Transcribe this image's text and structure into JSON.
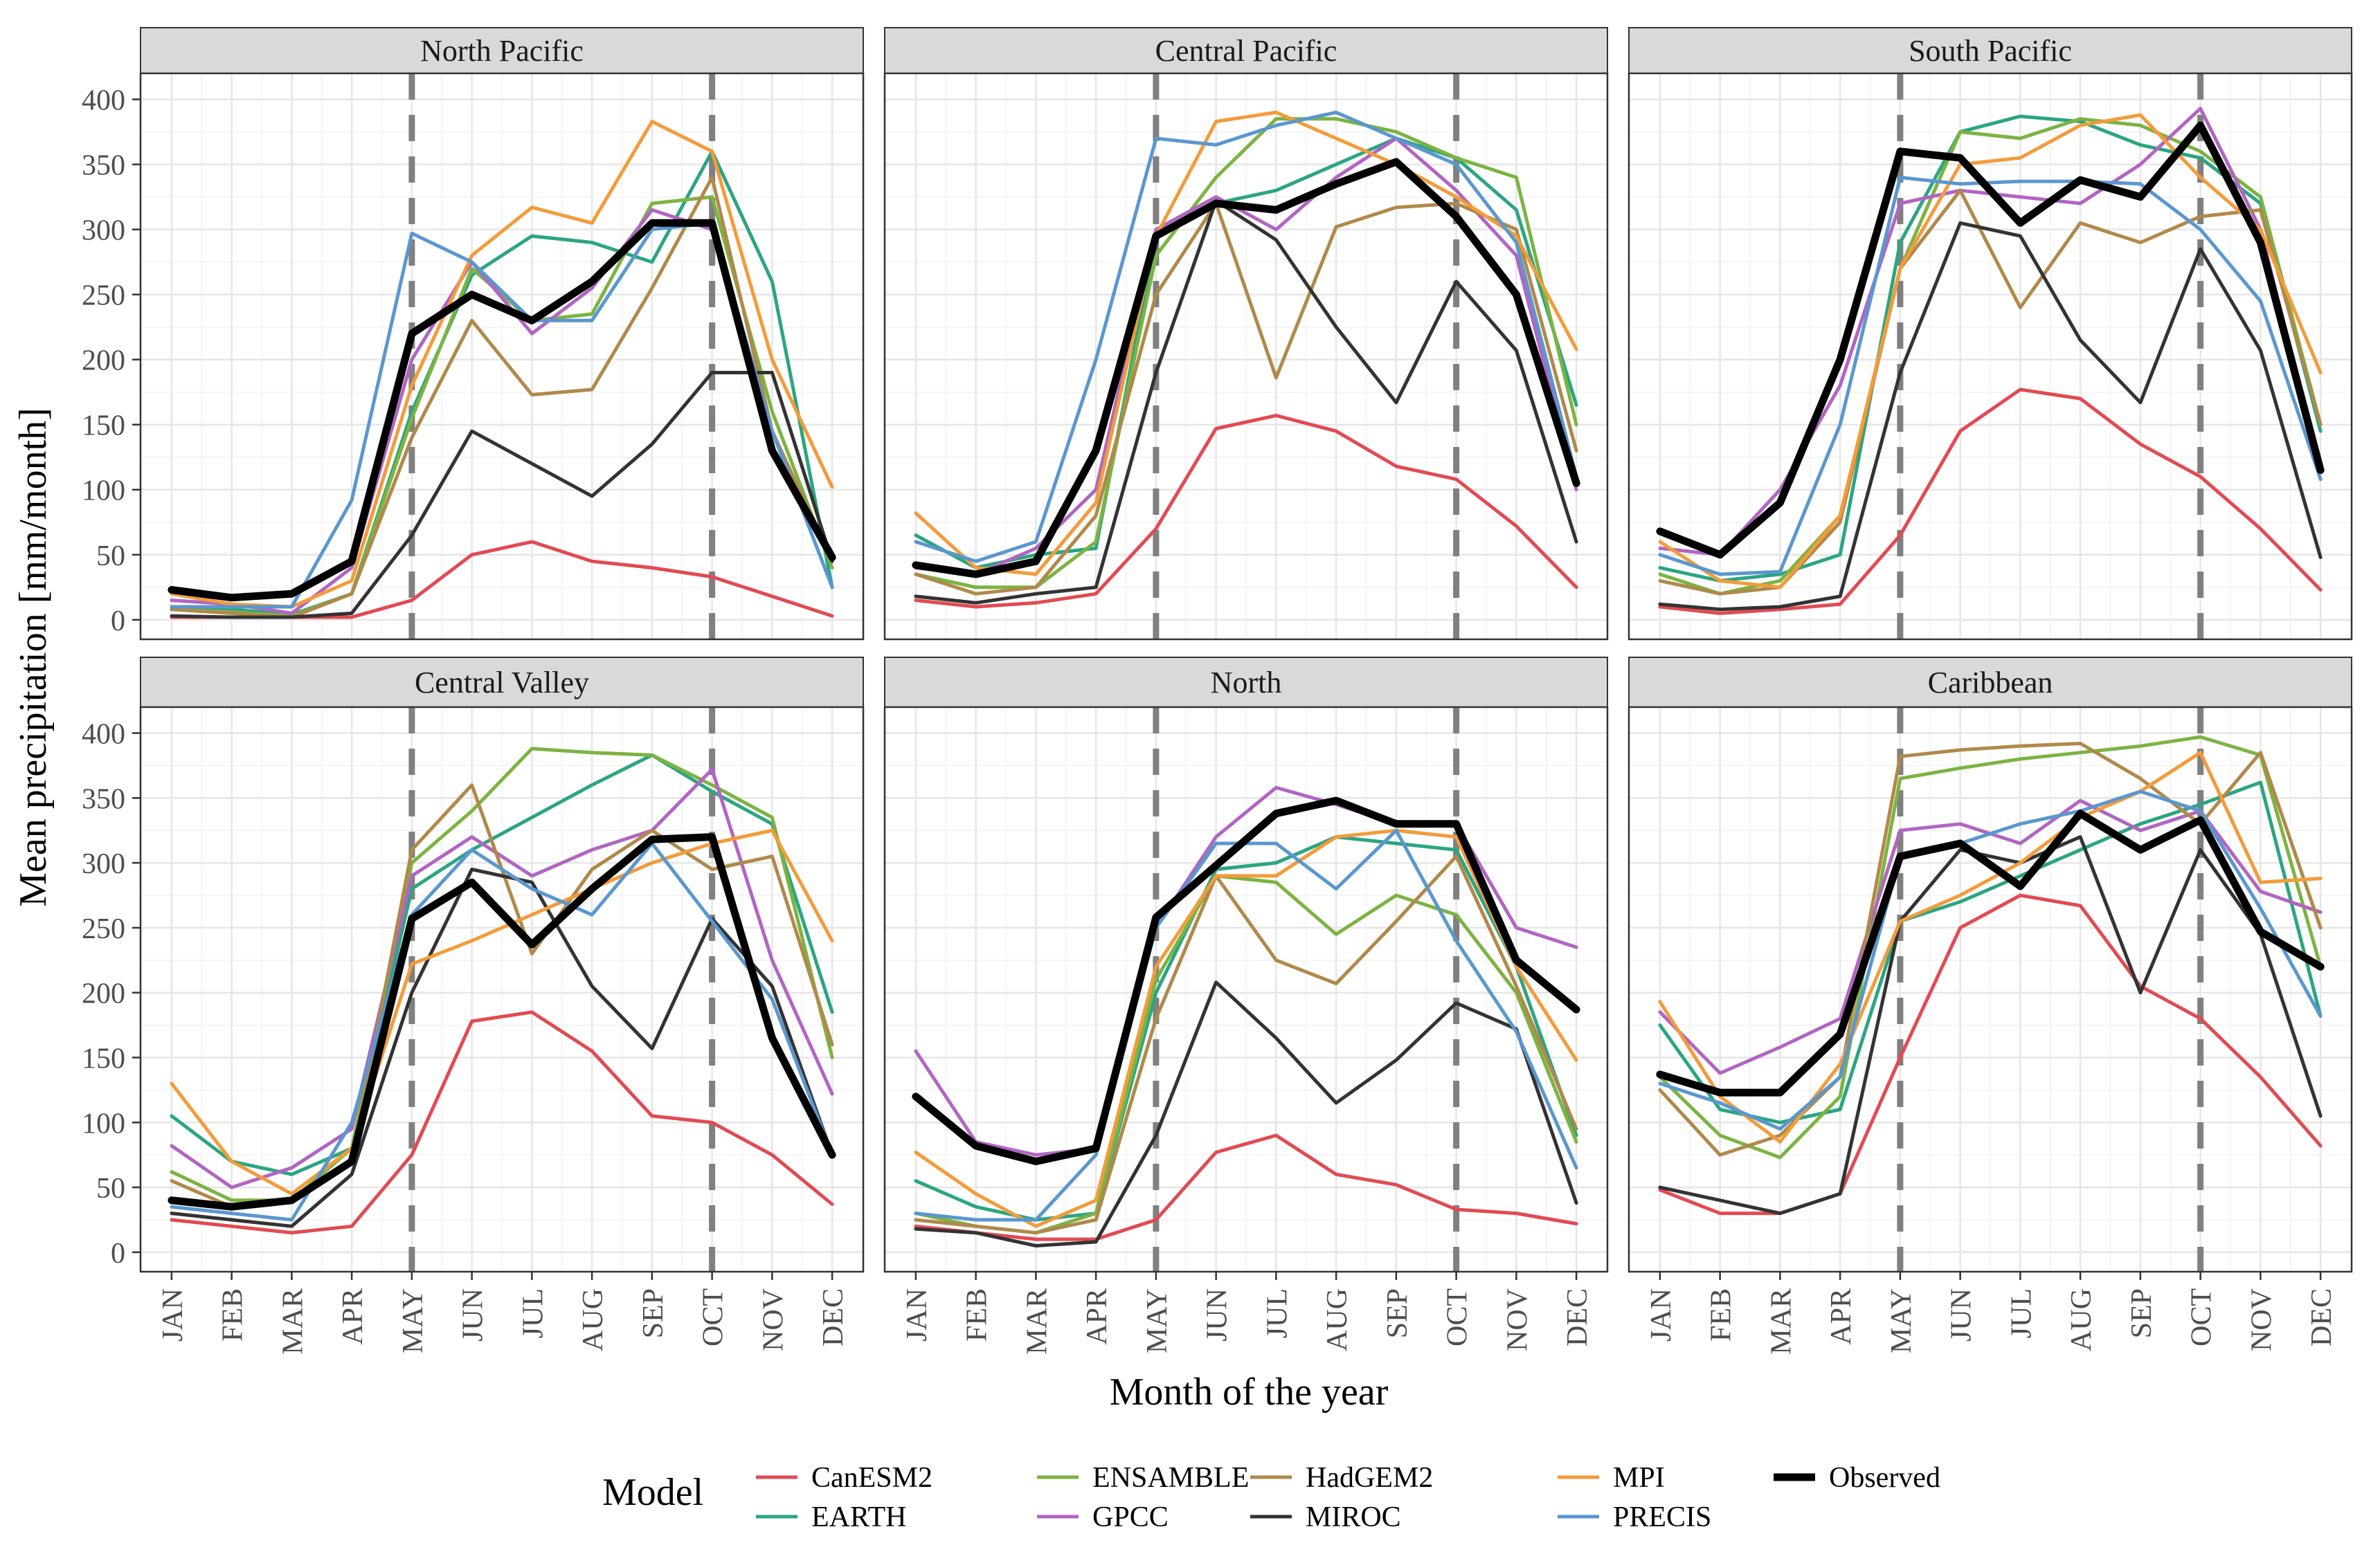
{
  "chart_data": {
    "type": "line",
    "ylabel": "Mean precipitation [mm/month]",
    "xlabel": "Month of the year",
    "ylim": [
      -15,
      420
    ],
    "yticks": [
      0,
      50,
      100,
      150,
      200,
      250,
      300,
      350,
      400
    ],
    "categories": [
      "JAN",
      "FEB",
      "MAR",
      "APR",
      "MAY",
      "JUN",
      "JUL",
      "AUG",
      "SEP",
      "OCT",
      "NOV",
      "DEC"
    ],
    "season_markers": [
      "MAY",
      "OCT"
    ],
    "legend": {
      "title": "Model",
      "position": "bottom",
      "entries": [
        {
          "name": "CanESM2",
          "color": "#e24a52"
        },
        {
          "name": "EARTH",
          "color": "#2ba582"
        },
        {
          "name": "ENSAMBLE",
          "color": "#7cb342"
        },
        {
          "name": "GPCC",
          "color": "#b165c2"
        },
        {
          "name": "HadGEM2",
          "color": "#b0894a"
        },
        {
          "name": "MIROC",
          "color": "#333333"
        },
        {
          "name": "MPI",
          "color": "#f39b3a"
        },
        {
          "name": "PRECIS",
          "color": "#5a97cf"
        },
        {
          "name": "Observed",
          "color": "#000000"
        }
      ]
    },
    "panels": [
      {
        "title": "North Pacific",
        "series": [
          {
            "name": "CanESM2",
            "values": [
              2,
              2,
              2,
              2,
              15,
              50,
              60,
              45,
              40,
              33,
              18,
              3
            ]
          },
          {
            "name": "EARTH",
            "values": [
              10,
              8,
              4,
              20,
              160,
              265,
              295,
              290,
              275,
              360,
              260,
              25
            ]
          },
          {
            "name": "ENSAMBLE",
            "values": [
              8,
              6,
              3,
              20,
              155,
              270,
              230,
              235,
              320,
              325,
              160,
              40
            ]
          },
          {
            "name": "GPCC",
            "values": [
              15,
              12,
              5,
              40,
              200,
              275,
              220,
              255,
              315,
              300,
              145,
              45
            ]
          },
          {
            "name": "HadGEM2",
            "values": [
              8,
              5,
              2,
              20,
              140,
              230,
              173,
              177,
              255,
              340,
              145,
              45
            ]
          },
          {
            "name": "MIROC",
            "values": [
              3,
              2,
              2,
              5,
              65,
              145,
              120,
              95,
              135,
              190,
              190,
              45
            ]
          },
          {
            "name": "MPI",
            "values": [
              20,
              12,
              10,
              30,
              180,
              280,
              317,
              305,
              383,
              360,
              200,
              102
            ]
          },
          {
            "name": "PRECIS",
            "values": [
              10,
              10,
              10,
              92,
              297,
              275,
              230,
              230,
              300,
              305,
              145,
              25
            ]
          },
          {
            "name": "Observed",
            "values": [
              23,
              17,
              20,
              45,
              220,
              250,
              230,
              260,
              305,
              305,
              130,
              48
            ]
          }
        ]
      },
      {
        "title": "Central Pacific",
        "series": [
          {
            "name": "CanESM2",
            "values": [
              15,
              10,
              13,
              20,
              70,
              147,
              157,
              145,
              118,
              108,
              72,
              25
            ]
          },
          {
            "name": "EARTH",
            "values": [
              65,
              40,
              50,
              55,
              295,
              320,
              330,
              350,
              370,
              355,
              315,
              165
            ]
          },
          {
            "name": "ENSAMBLE",
            "values": [
              35,
              25,
              25,
              60,
              280,
              340,
              385,
              385,
              375,
              355,
              340,
              150
            ]
          },
          {
            "name": "GPCC",
            "values": [
              40,
              35,
              55,
              100,
              300,
              325,
              300,
              340,
              370,
              330,
              280,
              100
            ]
          },
          {
            "name": "HadGEM2",
            "values": [
              35,
              20,
              25,
              80,
              250,
              320,
              186,
              302,
              317,
              320,
              300,
              130
            ]
          },
          {
            "name": "MIROC",
            "values": [
              18,
              13,
              20,
              25,
              190,
              322,
              292,
              225,
              167,
              260,
              207,
              60
            ]
          },
          {
            "name": "MPI",
            "values": [
              82,
              40,
              35,
              90,
              295,
              383,
              390,
              370,
              350,
              325,
              295,
              208
            ]
          },
          {
            "name": "PRECIS",
            "values": [
              60,
              45,
              60,
              200,
              370,
              365,
              380,
              390,
              370,
              350,
              290,
              110
            ]
          },
          {
            "name": "Observed",
            "values": [
              42,
              35,
              45,
              130,
              295,
              320,
              315,
              335,
              352,
              310,
              250,
              105
            ]
          }
        ]
      },
      {
        "title": "South Pacific",
        "series": [
          {
            "name": "CanESM2",
            "values": [
              10,
              5,
              8,
              12,
              65,
              145,
              177,
              170,
              135,
              110,
              70,
              23
            ]
          },
          {
            "name": "EARTH",
            "values": [
              40,
              30,
              35,
              50,
              290,
              375,
              387,
              383,
              365,
              355,
              320,
              145
            ]
          },
          {
            "name": "ENSAMBLE",
            "values": [
              35,
              20,
              30,
              80,
              270,
              375,
              370,
              385,
              380,
              360,
              325,
              150
            ]
          },
          {
            "name": "GPCC",
            "values": [
              55,
              50,
              100,
              180,
              320,
              330,
              325,
              320,
              350,
              393,
              300,
              115
            ]
          },
          {
            "name": "HadGEM2",
            "values": [
              30,
              20,
              25,
              75,
              270,
              330,
              240,
              305,
              290,
              310,
              315,
              150
            ]
          },
          {
            "name": "MIROC",
            "values": [
              12,
              8,
              10,
              18,
              190,
              305,
              295,
              215,
              167,
              285,
              207,
              48
            ]
          },
          {
            "name": "MPI",
            "values": [
              60,
              30,
              25,
              80,
              270,
              350,
              355,
              380,
              388,
              340,
              300,
              190
            ]
          },
          {
            "name": "PRECIS",
            "values": [
              50,
              35,
              37,
              150,
              340,
              335,
              337,
              337,
              335,
              300,
              245,
              108
            ]
          },
          {
            "name": "Observed",
            "values": [
              68,
              50,
              90,
              200,
              360,
              355,
              305,
              338,
              325,
              380,
              290,
              115
            ]
          }
        ]
      },
      {
        "title": "Central Valley",
        "series": [
          {
            "name": "CanESM2",
            "values": [
              25,
              20,
              15,
              20,
              75,
              178,
              185,
              155,
              105,
              100,
              75,
              37
            ]
          },
          {
            "name": "EARTH",
            "values": [
              105,
              70,
              60,
              80,
              280,
              310,
              335,
              360,
              383,
              355,
              330,
              185
            ]
          },
          {
            "name": "ENSAMBLE",
            "values": [
              62,
              40,
              40,
              80,
              300,
              340,
              388,
              385,
              383,
              360,
              335,
              150
            ]
          },
          {
            "name": "GPCC",
            "values": [
              82,
              50,
              65,
              95,
              290,
              320,
              290,
              310,
              325,
              372,
              225,
              122
            ]
          },
          {
            "name": "HadGEM2",
            "values": [
              55,
              35,
              40,
              70,
              310,
              360,
              230,
              295,
              325,
              295,
              305,
              160
            ]
          },
          {
            "name": "MIROC",
            "values": [
              30,
              25,
              20,
              60,
              200,
              295,
              285,
              205,
              157,
              257,
              205,
              75
            ]
          },
          {
            "name": "MPI",
            "values": [
              130,
              70,
              45,
              80,
              222,
              240,
              260,
              280,
              300,
              315,
              325,
              240
            ]
          },
          {
            "name": "PRECIS",
            "values": [
              35,
              30,
              25,
              100,
              260,
              310,
              280,
              260,
              315,
              255,
              195,
              75
            ]
          },
          {
            "name": "Observed",
            "values": [
              40,
              35,
              40,
              70,
              257,
              285,
              237,
              280,
              318,
              320,
              165,
              75
            ]
          }
        ]
      },
      {
        "title": "North",
        "series": [
          {
            "name": "CanESM2",
            "values": [
              20,
              15,
              10,
              10,
              25,
              77,
              90,
              60,
              52,
              33,
              30,
              22
            ]
          },
          {
            "name": "EARTH",
            "values": [
              55,
              35,
              25,
              30,
              200,
              295,
              300,
              320,
              315,
              310,
              220,
              90
            ]
          },
          {
            "name": "ENSAMBLE",
            "values": [
              30,
              20,
              15,
              30,
              210,
              290,
              285,
              245,
              275,
              260,
              200,
              85
            ]
          },
          {
            "name": "GPCC",
            "values": [
              155,
              85,
              75,
              80,
              250,
              320,
              358,
              345,
              330,
              330,
              250,
              235
            ]
          },
          {
            "name": "HadGEM2",
            "values": [
              25,
              20,
              15,
              25,
              180,
              290,
              225,
              207,
              255,
              305,
              205,
              95
            ]
          },
          {
            "name": "MIROC",
            "values": [
              18,
              15,
              5,
              8,
              90,
              208,
              165,
              115,
              148,
              192,
              172,
              38
            ]
          },
          {
            "name": "MPI",
            "values": [
              77,
              45,
              20,
              40,
              220,
              290,
              290,
              320,
              325,
              320,
              220,
              148
            ]
          },
          {
            "name": "PRECIS",
            "values": [
              30,
              25,
              25,
              75,
              250,
              315,
              315,
              280,
              325,
              240,
              170,
              65
            ]
          },
          {
            "name": "Observed",
            "values": [
              120,
              82,
              70,
              80,
              258,
              298,
              338,
              348,
              330,
              330,
              225,
              187
            ]
          }
        ]
      },
      {
        "title": "Caribbean",
        "series": [
          {
            "name": "CanESM2",
            "values": [
              48,
              30,
              30,
              45,
              150,
              250,
              275,
              267,
              205,
              180,
              135,
              82
            ]
          },
          {
            "name": "EARTH",
            "values": [
              175,
              110,
              100,
              110,
              255,
              270,
              290,
              310,
              330,
              345,
              362,
              182
            ]
          },
          {
            "name": "ENSAMBLE",
            "values": [
              135,
              90,
              73,
              120,
              365,
              373,
              380,
              385,
              390,
              397,
              383,
              220
            ]
          },
          {
            "name": "GPCC",
            "values": [
              185,
              138,
              158,
              180,
              325,
              330,
              315,
              348,
              325,
              340,
              278,
              262
            ]
          },
          {
            "name": "HadGEM2",
            "values": [
              125,
              75,
              90,
              135,
              382,
              387,
              390,
              392,
              365,
              330,
              385,
              250
            ]
          },
          {
            "name": "MIROC",
            "values": [
              50,
              40,
              30,
              45,
              255,
              310,
              300,
              320,
              200,
              310,
              245,
              105
            ]
          },
          {
            "name": "MPI",
            "values": [
              193,
              120,
              85,
              145,
              255,
              275,
              300,
              335,
              355,
              385,
              285,
              288
            ]
          },
          {
            "name": "PRECIS",
            "values": [
              130,
              115,
              95,
              135,
              305,
              315,
              330,
              340,
              355,
              340,
              265,
              182
            ]
          },
          {
            "name": "Observed",
            "values": [
              137,
              123,
              123,
              168,
              305,
              315,
              282,
              338,
              310,
              333,
              247,
              220
            ]
          }
        ]
      }
    ]
  }
}
